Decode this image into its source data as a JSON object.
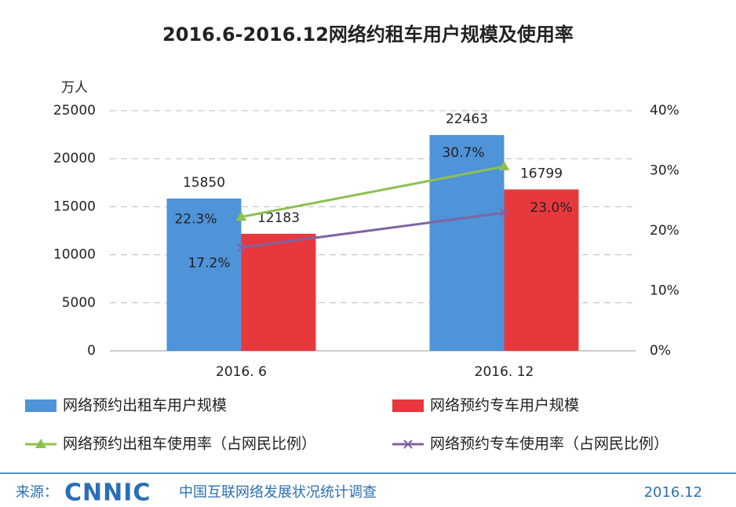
{
  "chart_data": {
    "type": "bar",
    "title": "2016.6-2016.12网络约租车用户规模及使用率",
    "y_unit": "万人",
    "categories": [
      "2016. 6",
      "2016. 12"
    ],
    "ylim": [
      0,
      25000
    ],
    "yticks": [
      0,
      5000,
      10000,
      15000,
      20000,
      25000
    ],
    "y2lim": [
      0,
      40
    ],
    "y2ticks": [
      {
        "value": 0,
        "label": "0%"
      },
      {
        "value": 10,
        "label": "10%"
      },
      {
        "value": 20,
        "label": "20%"
      },
      {
        "value": 30,
        "label": "30%"
      },
      {
        "value": 40,
        "label": "40%"
      }
    ],
    "grid": true,
    "series": [
      {
        "name": "网络预约出租车用户规模",
        "type": "bar",
        "color": "#4f93d8",
        "values": [
          15850,
          22463
        ]
      },
      {
        "name": "网络预约专车用户规模",
        "type": "bar",
        "color": "#e8383d",
        "values": [
          12183,
          16799
        ]
      },
      {
        "name": "网络预约出租车使用率（占网民比例）",
        "type": "line",
        "axis": "y2",
        "marker": "triangle",
        "color": "#8cc152",
        "values": [
          22.3,
          30.7
        ],
        "value_labels": [
          "22.3%",
          "30.7%"
        ]
      },
      {
        "name": "网络预约专车使用率（占网民比例）",
        "type": "line",
        "axis": "y2",
        "marker": "x",
        "color": "#8064a2",
        "values": [
          17.2,
          23.0
        ],
        "value_labels": [
          "17.2%",
          "23.0%"
        ]
      }
    ]
  },
  "footer": {
    "source_label": "来源：",
    "logo": "CNNIC",
    "source": "中国互联网络发展状况统计调查",
    "date": "2016.12"
  }
}
